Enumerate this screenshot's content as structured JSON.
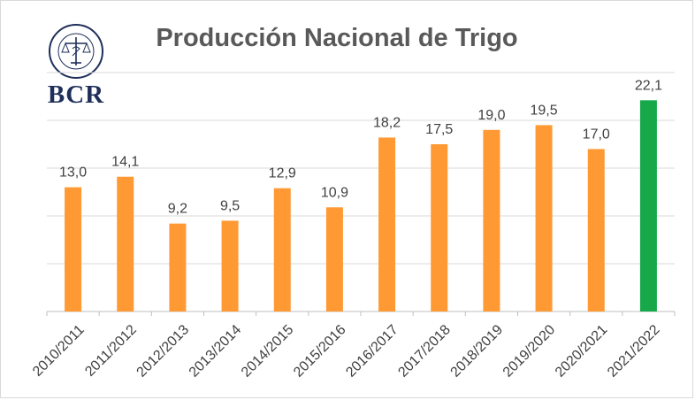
{
  "logo": {
    "text": "BCR",
    "seal_text": "BOLSA DE COMERCIO DE ROSARIO"
  },
  "colors": {
    "bar": "#ff9933",
    "highlight": "#17a84a",
    "grid": "#d9d9d9",
    "text": "#404040",
    "title": "#595959"
  },
  "chart_data": {
    "type": "bar",
    "title": "Producción Nacional de Trigo",
    "xlabel": "",
    "ylabel": "",
    "ylim": [
      0,
      25
    ],
    "grid": true,
    "legend": "none",
    "categories": [
      "2010/2011",
      "2011/2012",
      "2012/2013",
      "2013/2014",
      "2014/2015",
      "2015/2016",
      "2016/2017",
      "2017/2018",
      "2018/2019",
      "2019/2020",
      "2020/2021",
      "2021/2022"
    ],
    "values": [
      13.0,
      14.1,
      9.2,
      9.5,
      12.9,
      10.9,
      18.2,
      17.5,
      19.0,
      19.5,
      17.0,
      22.1
    ],
    "value_labels": [
      "13,0",
      "14,1",
      "9,2",
      "9,5",
      "12,9",
      "10,9",
      "18,2",
      "17,5",
      "19,0",
      "19,5",
      "17,0",
      "22,1"
    ],
    "highlight_index": 11
  }
}
